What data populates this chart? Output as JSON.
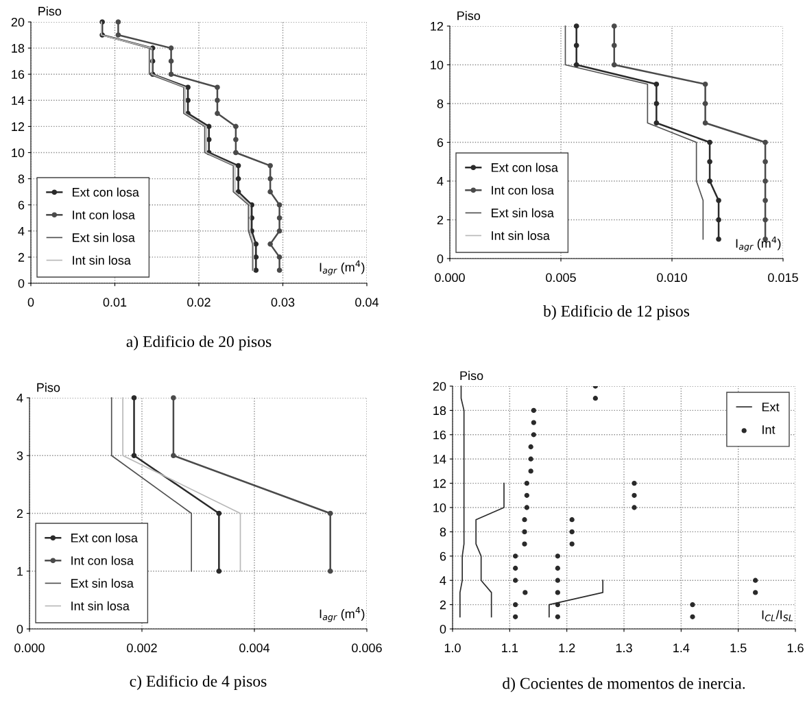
{
  "chart_data": [
    {
      "type": "line",
      "title": "a) Edificio de 20 pisos",
      "ylabel": "Piso",
      "xlabel": "I$_{agr}$ (m$^{4}$)",
      "xlim": [
        0,
        0.04
      ],
      "xticks": [
        0,
        0.01,
        0.02,
        0.03,
        0.04
      ],
      "ylim": [
        0,
        20
      ],
      "yticks": [
        0,
        2,
        4,
        6,
        8,
        10,
        12,
        14,
        16,
        18,
        20
      ],
      "grid": true,
      "legend": "bottom left",
      "series": [
        {
          "name": "Ext con losa",
          "color": "#2a2a2a",
          "marker": "circle",
          "x": [
            0.0268,
            0.0268,
            0.0268,
            0.0263,
            0.0263,
            0.0263,
            0.0247,
            0.0247,
            0.0247,
            0.0212,
            0.0212,
            0.0212,
            0.0187,
            0.0187,
            0.0187,
            0.0145,
            0.0145,
            0.0145,
            0.0085,
            0.0085
          ],
          "values": [
            1,
            2,
            3,
            4,
            5,
            6,
            7,
            8,
            9,
            10,
            11,
            12,
            13,
            14,
            15,
            16,
            17,
            18,
            19,
            20
          ]
        },
        {
          "name": "Int con losa",
          "color": "#4a4a4a",
          "marker": "circle",
          "x": [
            0.0296,
            0.0296,
            0.0285,
            0.0296,
            0.0296,
            0.0296,
            0.0285,
            0.0285,
            0.0285,
            0.0244,
            0.0244,
            0.0244,
            0.0222,
            0.0222,
            0.0222,
            0.0167,
            0.0167,
            0.0167,
            0.0104,
            0.0104
          ],
          "values": [
            1,
            2,
            3,
            4,
            5,
            6,
            7,
            8,
            9,
            10,
            11,
            12,
            13,
            14,
            15,
            16,
            17,
            18,
            19,
            20
          ]
        },
        {
          "name": "Ext sin losa",
          "color": "#505050",
          "marker": "none",
          "x": [
            0.0264,
            0.0264,
            0.0264,
            0.0259,
            0.0259,
            0.0259,
            0.0241,
            0.0241,
            0.0241,
            0.0207,
            0.0207,
            0.0207,
            0.0182,
            0.0182,
            0.0182,
            0.0141,
            0.0141,
            0.0141,
            0.0084,
            0.0084
          ],
          "values": [
            1,
            2,
            3,
            4,
            5,
            6,
            7,
            8,
            9,
            10,
            11,
            12,
            13,
            14,
            15,
            16,
            17,
            18,
            19,
            20
          ]
        },
        {
          "name": "Int sin losa",
          "color": "#b8b8b8",
          "marker": "none",
          "x": [
            0.0265,
            0.0265,
            0.0265,
            0.0261,
            0.0261,
            0.0261,
            0.0243,
            0.0243,
            0.0243,
            0.0209,
            0.0209,
            0.0209,
            0.0184,
            0.0184,
            0.0184,
            0.0144,
            0.0144,
            0.0144,
            0.0084,
            0.0084
          ],
          "values": [
            1,
            2,
            3,
            4,
            5,
            6,
            7,
            8,
            9,
            10,
            11,
            12,
            13,
            14,
            15,
            16,
            17,
            18,
            19,
            20
          ]
        }
      ]
    },
    {
      "type": "line",
      "title": "b) Edificio de 12 pisos",
      "ylabel": "Piso",
      "xlabel": "I$_{agr}$ (m$^{4}$)",
      "xlim": [
        0,
        0.015
      ],
      "xticks": [
        {
          "value": 0,
          "label": "0.000"
        },
        {
          "value": 0.005,
          "label": "0.005"
        },
        {
          "value": 0.01,
          "label": "0.010"
        },
        {
          "value": 0.015,
          "label": "0.015"
        }
      ],
      "ylim": [
        0,
        12
      ],
      "yticks": [
        0,
        2,
        4,
        6,
        8,
        10,
        12
      ],
      "grid": true,
      "legend": "bottom left",
      "series": [
        {
          "name": "Ext con losa",
          "color": "#2a2a2a",
          "marker": "circle",
          "x": [
            0.0121,
            0.0121,
            0.0121,
            0.0117,
            0.0117,
            0.0117,
            0.0093,
            0.0093,
            0.0093,
            0.0057,
            0.0057,
            0.0057
          ],
          "values": [
            1,
            2,
            3,
            4,
            5,
            6,
            7,
            8,
            9,
            10,
            11,
            12
          ]
        },
        {
          "name": "Int con losa",
          "color": "#4a4a4a",
          "marker": "circle",
          "x": [
            0.0142,
            0.0142,
            0.0142,
            0.0142,
            0.0142,
            0.0142,
            0.0115,
            0.0115,
            0.0115,
            0.0074,
            0.0074,
            0.0074
          ],
          "values": [
            1,
            2,
            3,
            4,
            5,
            6,
            7,
            8,
            9,
            10,
            11,
            12
          ]
        },
        {
          "name": "Ext sin losa",
          "color": "#505050",
          "marker": "none",
          "x": [
            0.0114,
            0.0114,
            0.0114,
            0.0111,
            0.0111,
            0.0111,
            0.0089,
            0.0089,
            0.0089,
            0.0052,
            0.0052,
            0.0052
          ],
          "values": [
            1,
            2,
            3,
            4,
            5,
            6,
            7,
            8,
            9,
            10,
            11,
            12
          ]
        },
        {
          "name": "Int sin losa",
          "color": "#b8b8b8",
          "marker": "none"
        }
      ]
    },
    {
      "type": "line",
      "title": "c) Edificio de 4 pisos",
      "ylabel": "Piso",
      "xlabel": "I$_{agr}$ (m$^{4}$)",
      "xlim": [
        0,
        0.006
      ],
      "xticks": [
        {
          "value": 0,
          "label": "0.000"
        },
        {
          "value": 0.002,
          "label": "0.002"
        },
        {
          "value": 0.004,
          "label": "0.004"
        },
        {
          "value": 0.006,
          "label": "0.006"
        }
      ],
      "ylim": [
        0,
        4
      ],
      "yticks": [
        0,
        1,
        2,
        3,
        4
      ],
      "grid": true,
      "legend": "bottom left",
      "series": [
        {
          "name": "Ext con losa",
          "color": "#2a2a2a",
          "marker": "circle",
          "x": [
            0.00337,
            0.00337,
            0.00186,
            0.00186
          ],
          "values": [
            1,
            2,
            3,
            4
          ]
        },
        {
          "name": "Int con losa",
          "color": "#4a4a4a",
          "marker": "circle",
          "x": [
            0.00535,
            0.00535,
            0.00256,
            0.00256
          ],
          "values": [
            1,
            2,
            3,
            4
          ]
        },
        {
          "name": "Ext sin losa",
          "color": "#505050",
          "marker": "none",
          "x": [
            0.00288,
            0.00288,
            0.00146,
            0.00146
          ],
          "values": [
            1,
            2,
            3,
            4
          ]
        },
        {
          "name": "Int sin losa",
          "color": "#b8b8b8",
          "marker": "none",
          "x": [
            0.00375,
            0.00375,
            0.00166,
            0.00166
          ],
          "values": [
            1,
            2,
            3,
            4
          ]
        }
      ]
    },
    {
      "type": "line",
      "title": "d) Cocientes de momentos de inercia.",
      "ylabel": "Piso",
      "xlabel": "I$_{CL}$/I$_{SL}$",
      "xlim": [
        1.0,
        1.6
      ],
      "xticks": [
        {
          "value": 1.0,
          "label": "1.0"
        },
        {
          "value": 1.1,
          "label": "1.1"
        },
        {
          "value": 1.2,
          "label": "1.2"
        },
        {
          "value": 1.3,
          "label": "1.3"
        },
        {
          "value": 1.4,
          "label": "1.4"
        },
        {
          "value": 1.5,
          "label": "1.5"
        },
        {
          "value": 1.6,
          "label": "1.6"
        }
      ],
      "ylim": [
        0,
        20
      ],
      "yticks": [
        0,
        2,
        4,
        6,
        8,
        10,
        12,
        14,
        16,
        18,
        20
      ],
      "grid": true,
      "legend": "top right",
      "series": [
        {
          "name": "Ext",
          "color": "#2a2a2a",
          "marker": "none",
          "x": [
            1.013,
            1.013,
            1.013,
            1.017,
            1.017,
            1.017,
            1.02,
            1.02,
            1.02,
            1.02,
            1.02,
            1.02,
            1.02,
            1.02,
            1.02,
            1.02,
            1.02,
            1.02,
            1.015,
            1.015
          ],
          "values": [
            1,
            2,
            3,
            4,
            5,
            6,
            7,
            8,
            9,
            10,
            11,
            12,
            13,
            14,
            15,
            16,
            17,
            18,
            19,
            20
          ]
        },
        {
          "color": "#2a2a2a",
          "marker": "none",
          "x": [
            1.068,
            1.068,
            1.068,
            1.05,
            1.05,
            1.05,
            1.041,
            1.041,
            1.041,
            1.09,
            1.09,
            1.09
          ],
          "values": [
            1,
            2,
            3,
            4,
            5,
            6,
            7,
            8,
            9,
            10,
            11,
            12
          ]
        },
        {
          "color": "#2a2a2a",
          "marker": "none",
          "x": [
            1.169,
            1.169,
            1.263,
            1.263
          ],
          "values": [
            1,
            2,
            3,
            4
          ]
        },
        {
          "name": "Int",
          "type": "scatter",
          "color": "#2a2a2a",
          "marker": "circle",
          "x": [
            1.11,
            1.11,
            1.127,
            1.11,
            1.11,
            1.11,
            1.126,
            1.126,
            1.126,
            1.13,
            1.13,
            1.13,
            1.137,
            1.137,
            1.137,
            1.142,
            1.142,
            1.142,
            1.25,
            1.25
          ],
          "values": [
            1,
            2,
            3,
            4,
            5,
            6,
            7,
            8,
            9,
            10,
            11,
            12,
            13,
            14,
            15,
            16,
            17,
            18,
            19,
            20
          ]
        },
        {
          "type": "scatter",
          "color": "#2a2a2a",
          "marker": "circle",
          "x": [
            1.184,
            1.184,
            1.184,
            1.184,
            1.184,
            1.184,
            1.209,
            1.209,
            1.209,
            1.318,
            1.318,
            1.318
          ],
          "values": [
            1,
            2,
            3,
            4,
            5,
            6,
            7,
            8,
            9,
            10,
            11,
            12
          ]
        },
        {
          "type": "scatter",
          "color": "#2a2a2a",
          "marker": "circle",
          "x": [
            1.42,
            1.42,
            1.53,
            1.53
          ],
          "values": [
            1,
            2,
            3,
            4
          ]
        }
      ]
    }
  ]
}
